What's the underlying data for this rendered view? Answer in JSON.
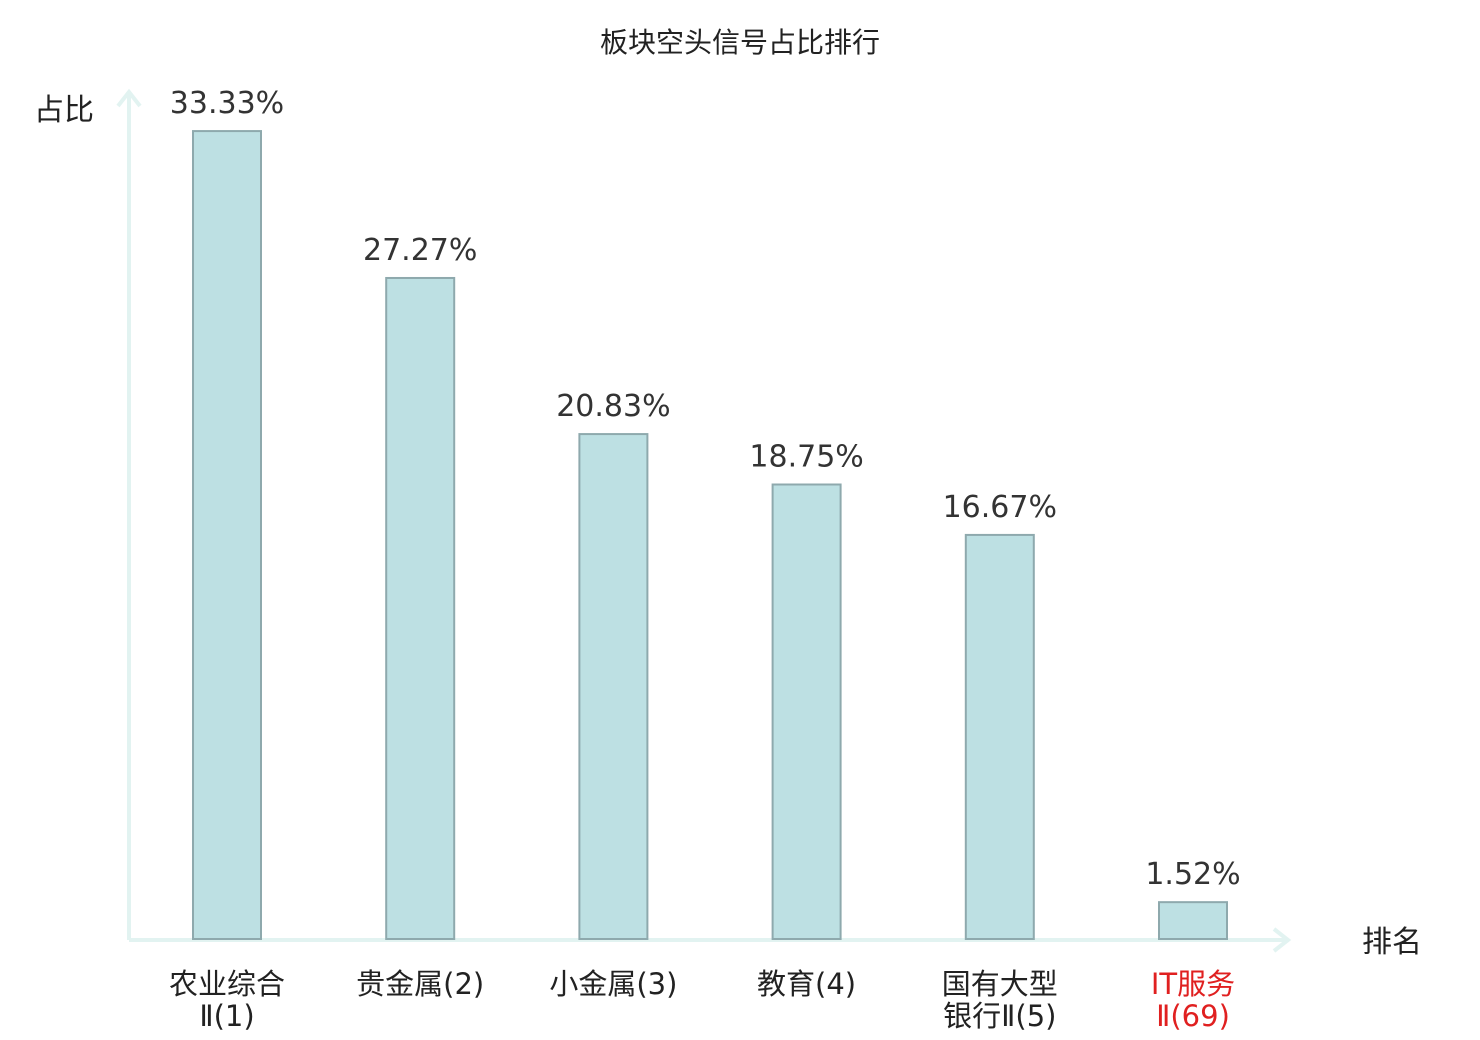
{
  "chart_data": {
    "type": "bar",
    "title": "板块空头信号占比排行",
    "ylabel": "占比",
    "xlabel": "排名",
    "ylim": [
      0,
      35
    ],
    "grid": false,
    "categories": [
      [
        "农业综合",
        "Ⅱ(1)"
      ],
      [
        "贵金属(2)"
      ],
      [
        "小金属(3)"
      ],
      [
        "教育(4)"
      ],
      [
        "国有大型",
        "银行Ⅱ(5)"
      ],
      [
        "IT服务",
        "Ⅱ(69)"
      ]
    ],
    "values": [
      33.33,
      27.27,
      20.83,
      18.75,
      16.67,
      1.52
    ],
    "value_labels": [
      "33.33%",
      "27.27%",
      "20.83%",
      "18.75%",
      "16.67%",
      "1.52%"
    ],
    "highlight_index": 5,
    "colors": {
      "bar_fill": "#bde0e3",
      "bar_stroke": "#8ea9ad",
      "axis": "#e2f3f1",
      "highlight_text": "#e02020"
    }
  }
}
